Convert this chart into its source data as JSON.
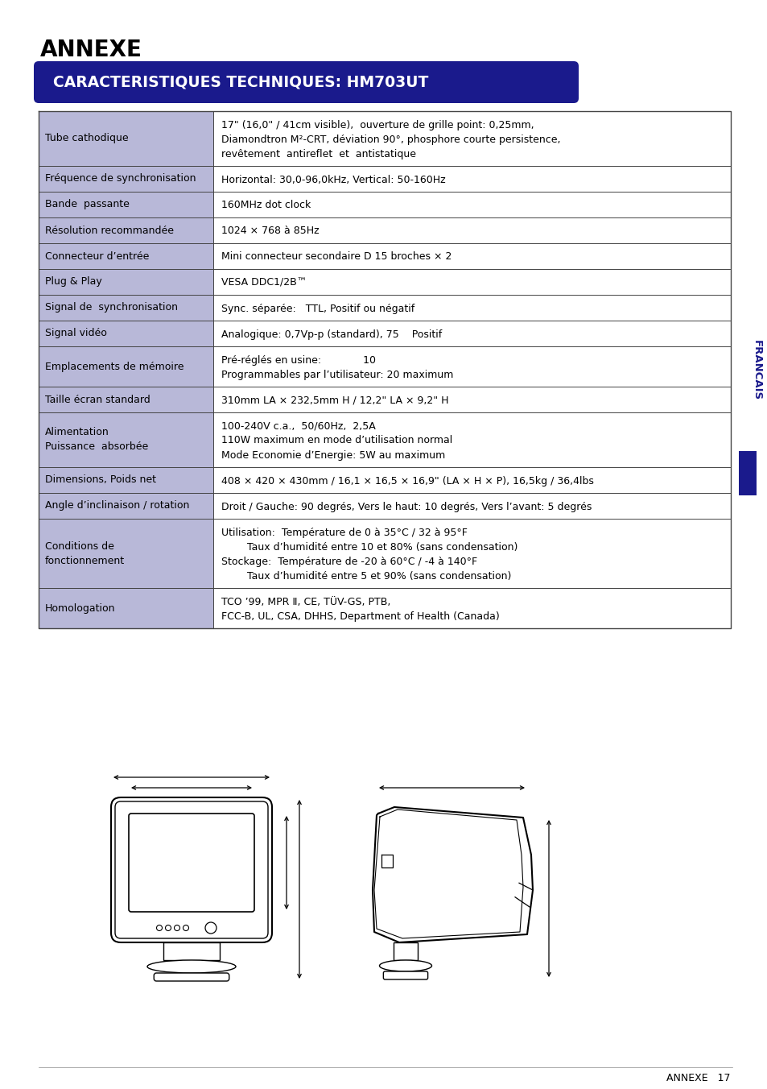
{
  "title": "ANNEXE",
  "subtitle": "CARACTERISTIQUES TECHNIQUES: HM703UT",
  "subtitle_bg": "#1a1a8c",
  "subtitle_fg": "#ffffff",
  "page_bg": "#ffffff",
  "table_left_bg": "#b8b8d8",
  "table_border": "#444444",
  "francais_color": "#1a1a8c",
  "footer_text": "ANNEXE   17",
  "rows": [
    {
      "left": [
        "Tube cathodique"
      ],
      "right": [
        "17\" (16,0\" / 41cm visible),  ouverture de grille point: 0,25mm,",
        "Diamondtron M²-CRT, déviation 90°, phosphore courte persistence,",
        "revêtement  antireflet  et  antistatique"
      ]
    },
    {
      "left": [
        "Fréquence de synchronisation"
      ],
      "right": [
        "Horizontal: 30,0-96,0kHz, Vertical: 50-160Hz"
      ]
    },
    {
      "left": [
        "Bande  passante"
      ],
      "right": [
        "160MHz dot clock"
      ]
    },
    {
      "left": [
        "Résolution recommandée"
      ],
      "right": [
        "1024 × 768 à 85Hz"
      ]
    },
    {
      "left": [
        "Connecteur d’entrée"
      ],
      "right": [
        "Mini connecteur secondaire D 15 broches × 2"
      ]
    },
    {
      "left": [
        "Plug & Play"
      ],
      "right": [
        "VESA DDC1/2B™"
      ]
    },
    {
      "left": [
        "Signal de  synchronisation"
      ],
      "right": [
        "Sync. séparée:   TTL, Positif ou négatif"
      ]
    },
    {
      "left": [
        "Signal vidéo"
      ],
      "right": [
        "Analogique: 0,7Vp-p (standard), 75    Positif"
      ]
    },
    {
      "left": [
        "Emplacements de mémoire"
      ],
      "right": [
        "Pré-réglés en usine:             10",
        "Programmables par l’utilisateur: 20 maximum"
      ]
    },
    {
      "left": [
        "Taille écran standard"
      ],
      "right": [
        "310mm LA × 232,5mm H / 12,2\" LA × 9,2\" H"
      ]
    },
    {
      "left": [
        "Alimentation",
        "Puissance  absorbée"
      ],
      "right": [
        "100-240V c.a.,  50/60Hz,  2,5A",
        "110W maximum en mode d’utilisation normal",
        "Mode Economie d’Energie: 5W au maximum"
      ]
    },
    {
      "left": [
        "Dimensions, Poids net"
      ],
      "right": [
        "408 × 420 × 430mm / 16,1 × 16,5 × 16,9\" (LA × H × P), 16,5kg / 36,4lbs"
      ]
    },
    {
      "left": [
        "Angle d’inclinaison / rotation"
      ],
      "right": [
        "Droit / Gauche: 90 degrés, Vers le haut: 10 degrés, Vers l’avant: 5 degrés"
      ]
    },
    {
      "left": [
        "Conditions de",
        "fonctionnement"
      ],
      "right": [
        "Utilisation:  Température de 0 à 35°C / 32 à 95°F",
        "        Taux d’humidité entre 10 et 80% (sans condensation)",
        "Stockage:  Température de -20 à 60°C / -4 à 140°F",
        "        Taux d’humidité entre 5 et 90% (sans condensation)"
      ]
    },
    {
      "left": [
        "Homologation"
      ],
      "right": [
        "TCO ’99, MPR Ⅱ, CE, TÜV-GS, PTB,",
        "FCC-B, UL, CSA, DHHS, Department of Health (Canada)"
      ]
    }
  ]
}
